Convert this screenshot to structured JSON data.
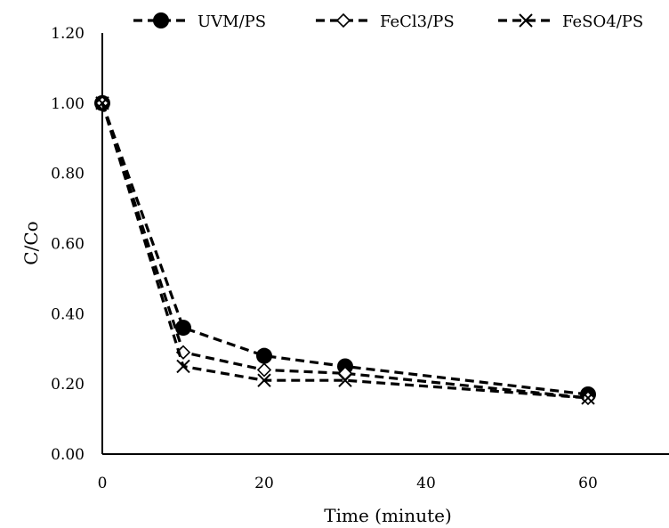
{
  "chart_data": {
    "type": "line",
    "xlabel": "Time (minute)",
    "ylabel": "C/Co",
    "xlim": [
      0,
      70
    ],
    "ylim": [
      0,
      1.2
    ],
    "x_ticks": [
      "0",
      "20",
      "40",
      "60"
    ],
    "x_tick_values": [
      0,
      20,
      40,
      60
    ],
    "y_ticks": [
      "0.00",
      "0.20",
      "0.40",
      "0.60",
      "0.80",
      "1.00",
      "1.20"
    ],
    "y_tick_values": [
      0,
      0.2,
      0.4,
      0.6,
      0.8,
      1.0,
      1.2
    ],
    "grid": false,
    "legend_position": "top",
    "line_style": "dashed",
    "line_color": "#000000",
    "series": [
      {
        "name": "UVM/PS",
        "marker": "filled-circle",
        "x": [
          0,
          10,
          20,
          30,
          60
        ],
        "y": [
          1.0,
          0.36,
          0.28,
          0.25,
          0.17
        ]
      },
      {
        "name": "FeCl3/PS",
        "marker": "open-diamond",
        "x": [
          0,
          10,
          20,
          30,
          60
        ],
        "y": [
          1.0,
          0.29,
          0.24,
          0.23,
          0.16
        ]
      },
      {
        "name": "FeSO4/PS",
        "marker": "x-cross",
        "x": [
          0,
          10,
          20,
          30,
          60
        ],
        "y": [
          1.0,
          0.25,
          0.21,
          0.21,
          0.16
        ]
      }
    ]
  }
}
